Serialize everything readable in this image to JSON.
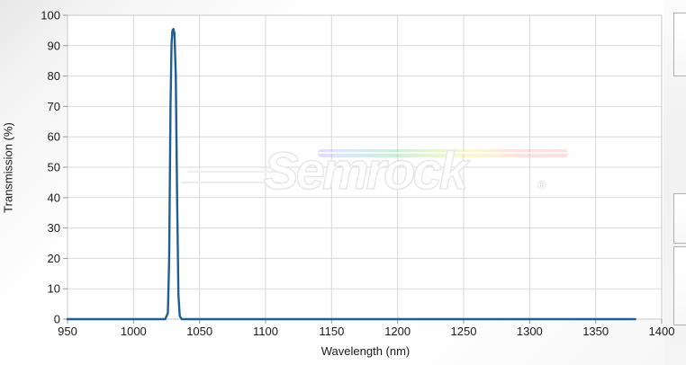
{
  "watermark": {
    "text": "Semrock",
    "registered": "®"
  },
  "chart_data": {
    "type": "line",
    "title": "",
    "xlabel": "Wavelength (nm)",
    "ylabel": "Transmission (%)",
    "xlim": [
      950,
      1400
    ],
    "ylim": [
      0,
      100
    ],
    "x_ticks": [
      950,
      1000,
      1050,
      1100,
      1150,
      1200,
      1250,
      1300,
      1350,
      1400
    ],
    "y_ticks": [
      0,
      10,
      20,
      30,
      40,
      50,
      60,
      70,
      80,
      90,
      100
    ],
    "grid": true,
    "legend": "none",
    "line_color": "#1e5e92",
    "grid_color": "#d9d9d9",
    "tick_color": "#9a9a9a",
    "label_color": "#1a1a1a",
    "plot_bg": "#ffffff",
    "series": [
      {
        "name": "Transmission",
        "x": [
          950,
          1024,
          1026,
          1027,
          1028,
          1028.8,
          1029.5,
          1030.2,
          1031,
          1032,
          1033,
          1034,
          1035,
          1036.5,
          1380
        ],
        "y": [
          0,
          0,
          2,
          20,
          70,
          91,
          95,
          95.5,
          94,
          80,
          40,
          8,
          1,
          0,
          0
        ]
      }
    ],
    "peak": {
      "wavelength_nm": 1030,
      "transmission_pct": 95.5
    },
    "data_x_end": 1380
  },
  "side_panel": {
    "visible_partial_buttons": 3
  }
}
